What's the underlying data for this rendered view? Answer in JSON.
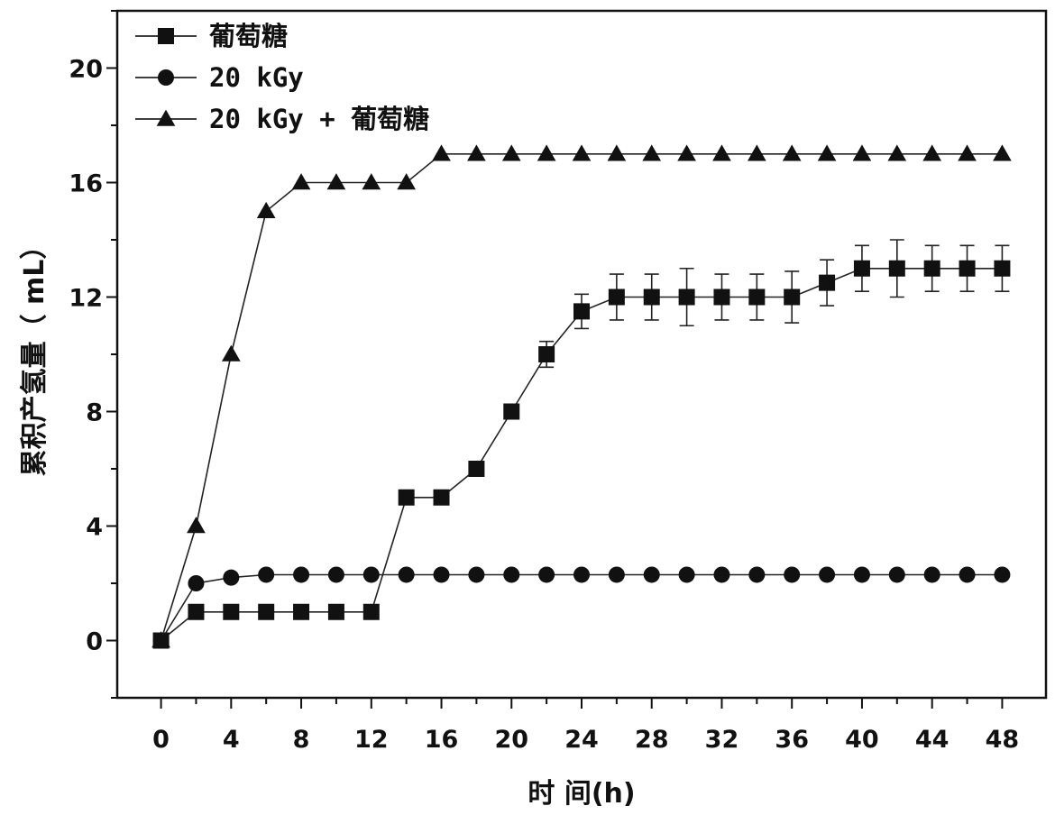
{
  "chart_data": {
    "type": "line",
    "xlabel": "时 间(h)",
    "ylabel": "累积产氢量（ mL）",
    "xlim": [
      -2.5,
      50.5
    ],
    "ylim": [
      -2,
      22
    ],
    "xticks": [
      0,
      4,
      8,
      12,
      16,
      20,
      24,
      28,
      32,
      36,
      40,
      44,
      48
    ],
    "yticks": [
      0,
      4,
      8,
      12,
      16,
      20
    ],
    "grid": false,
    "legend_position": "top-left",
    "x": [
      0,
      2,
      4,
      6,
      8,
      10,
      12,
      14,
      16,
      18,
      20,
      22,
      24,
      26,
      28,
      30,
      32,
      34,
      36,
      38,
      40,
      42,
      44,
      46,
      48
    ],
    "series": [
      {
        "name": "葡萄糖",
        "marker": "square",
        "values": [
          0,
          1,
          1,
          1,
          1,
          1,
          1,
          5,
          5,
          6,
          8,
          10,
          11.5,
          12,
          12,
          12,
          12,
          12,
          12,
          12.5,
          13,
          13,
          13,
          13,
          13
        ],
        "errors": [
          0,
          0,
          0,
          0,
          0,
          0,
          0,
          0,
          0,
          0,
          0.25,
          0.45,
          0.6,
          0.8,
          0.8,
          1.0,
          0.8,
          0.8,
          0.9,
          0.8,
          0.8,
          1.0,
          0.8,
          0.8,
          0.8
        ]
      },
      {
        "name": "20 kGy",
        "marker": "circle",
        "values": [
          0,
          2,
          2.2,
          2.3,
          2.3,
          2.3,
          2.3,
          2.3,
          2.3,
          2.3,
          2.3,
          2.3,
          2.3,
          2.3,
          2.3,
          2.3,
          2.3,
          2.3,
          2.3,
          2.3,
          2.3,
          2.3,
          2.3,
          2.3,
          2.3
        ]
      },
      {
        "name": "20 kGy + 葡萄糖",
        "marker": "triangle",
        "values": [
          0,
          4,
          10,
          15,
          16,
          16,
          16,
          16,
          17,
          17,
          17,
          17,
          17,
          17,
          17,
          17,
          17,
          17,
          17,
          17,
          17,
          17,
          17,
          17,
          17
        ]
      }
    ]
  }
}
